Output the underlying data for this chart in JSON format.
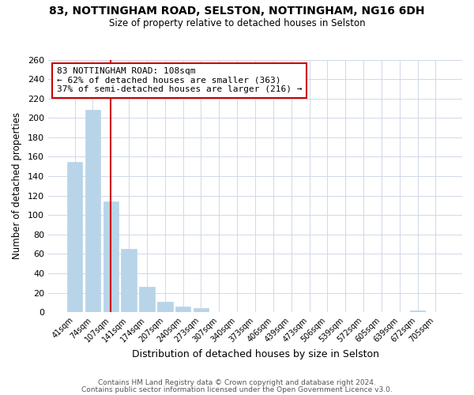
{
  "title": "83, NOTTINGHAM ROAD, SELSTON, NOTTINGHAM, NG16 6DH",
  "subtitle": "Size of property relative to detached houses in Selston",
  "xlabel": "Distribution of detached houses by size in Selston",
  "ylabel": "Number of detached properties",
  "bar_labels": [
    "41sqm",
    "74sqm",
    "107sqm",
    "141sqm",
    "174sqm",
    "207sqm",
    "240sqm",
    "273sqm",
    "307sqm",
    "340sqm",
    "373sqm",
    "406sqm",
    "439sqm",
    "473sqm",
    "506sqm",
    "539sqm",
    "572sqm",
    "605sqm",
    "639sqm",
    "672sqm",
    "705sqm"
  ],
  "bar_values": [
    155,
    208,
    114,
    65,
    26,
    11,
    6,
    4,
    0,
    0,
    0,
    0,
    0,
    0,
    0,
    0,
    0,
    0,
    0,
    2,
    0
  ],
  "bar_color": "#b8d4e8",
  "bar_edge_color": "#b8d4e8",
  "vline_x": 2,
  "vline_color": "#cc0000",
  "annotation_text": "83 NOTTINGHAM ROAD: 108sqm\n← 62% of detached houses are smaller (363)\n37% of semi-detached houses are larger (216) →",
  "annotation_box_color": "#ffffff",
  "annotation_box_edgecolor": "#cc0000",
  "ylim": [
    0,
    260
  ],
  "yticks": [
    0,
    20,
    40,
    60,
    80,
    100,
    120,
    140,
    160,
    180,
    200,
    220,
    240,
    260
  ],
  "footer_line1": "Contains HM Land Registry data © Crown copyright and database right 2024.",
  "footer_line2": "Contains public sector information licensed under the Open Government Licence v3.0.",
  "bg_color": "#ffffff",
  "plot_bg_color": "#ffffff",
  "grid_color": "#d0d8e8"
}
